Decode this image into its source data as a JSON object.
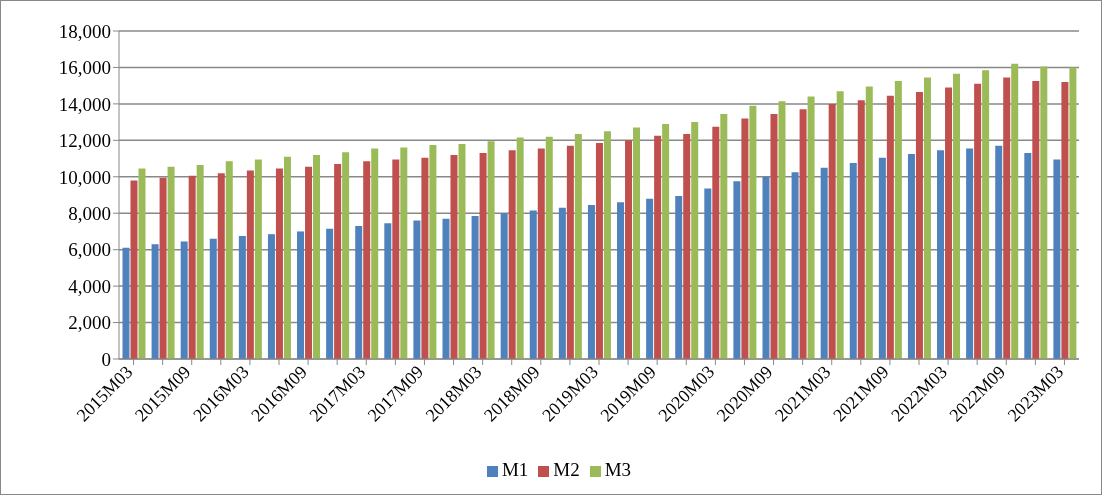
{
  "chart_data": {
    "type": "bar",
    "categories": [
      "2015M03",
      null,
      "2015M09",
      null,
      "2016M03",
      null,
      "2016M09",
      null,
      "2017M03",
      null,
      "2017M09",
      null,
      "2018M03",
      null,
      "2018M09",
      null,
      "2019M03",
      null,
      "2019M09",
      null,
      "2020M03",
      null,
      "2020M09",
      null,
      "2021M03",
      null,
      "2021M09",
      null,
      "2022M03",
      null,
      "2022M09",
      null,
      "2023M03"
    ],
    "series": [
      {
        "name": "M1",
        "color": "#4f81bd",
        "values": [
          6100,
          6300,
          6450,
          6600,
          6750,
          6850,
          7000,
          7150,
          7300,
          7450,
          7600,
          7700,
          7850,
          8000,
          8150,
          8300,
          8450,
          8600,
          8800,
          8950,
          9350,
          9750,
          10000,
          10250,
          10500,
          10750,
          11050,
          11250,
          11450,
          11550,
          11700,
          11300,
          10950
        ]
      },
      {
        "name": "M2",
        "color": "#c0504d",
        "values": [
          9800,
          9950,
          10050,
          10200,
          10350,
          10450,
          10550,
          10700,
          10850,
          10950,
          11050,
          11200,
          11300,
          11450,
          11550,
          11700,
          11850,
          12000,
          12250,
          12350,
          12750,
          13200,
          13450,
          13700,
          14000,
          14200,
          14450,
          14650,
          14900,
          15100,
          15450,
          15250,
          15200
        ]
      },
      {
        "name": "M3",
        "color": "#9bbb59",
        "values": [
          10450,
          10550,
          10650,
          10850,
          10950,
          11100,
          11200,
          11350,
          11550,
          11600,
          11750,
          11800,
          11950,
          12150,
          12200,
          12350,
          12500,
          12700,
          12900,
          13000,
          13450,
          13900,
          14150,
          14400,
          14700,
          14950,
          15250,
          15450,
          15650,
          15850,
          16200,
          16050,
          16000
        ]
      }
    ],
    "ylim": [
      0,
      18000
    ],
    "yticks": [
      0,
      {
        "value": 2000,
        "label": "2,000"
      },
      {
        "value": 4000,
        "label": "4,000"
      },
      {
        "value": 6000,
        "label": "6,000"
      },
      {
        "value": 8000,
        "label": "8,000"
      },
      {
        "value": 10000,
        "label": "10,000"
      },
      {
        "value": 12000,
        "label": "12,000"
      },
      {
        "value": 14000,
        "label": "14,000"
      },
      {
        "value": 16000,
        "label": "16,000"
      },
      {
        "value": 18000,
        "label": "18,000"
      }
    ],
    "grid": "y",
    "legend": "bottom"
  }
}
